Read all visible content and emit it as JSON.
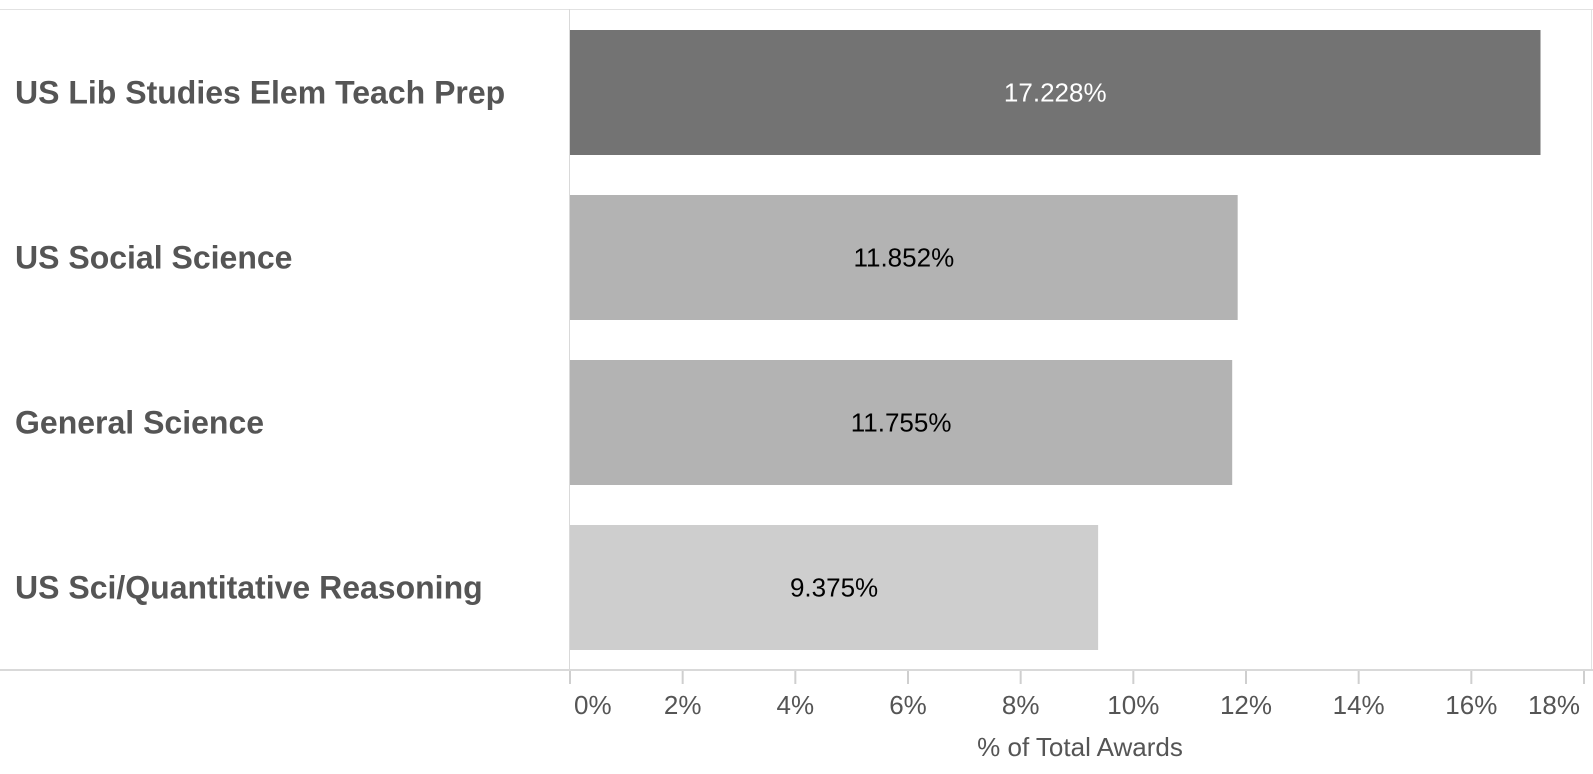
{
  "chart_data": {
    "type": "bar",
    "orientation": "horizontal",
    "title": "",
    "xlabel": "% of Total Awards",
    "ylabel": "",
    "categories": [
      "US Lib Studies Elem Teach Prep",
      "US Social Science",
      "General Science",
      "US Sci/Quantitative Reasoning"
    ],
    "values": [
      17.228,
      11.852,
      11.755,
      9.375
    ],
    "value_labels": [
      "17.228%",
      "11.852%",
      "11.755%",
      "9.375%"
    ],
    "bar_colors": [
      "#737373",
      "#b3b3b3",
      "#b3b3b3",
      "#cecece"
    ],
    "value_label_colors": [
      "#ffffff",
      "#000000",
      "#000000",
      "#000000"
    ],
    "xlim": [
      0,
      18
    ],
    "xticks": [
      0,
      2,
      4,
      6,
      8,
      10,
      12,
      14,
      16,
      18
    ],
    "xtick_labels": [
      "0%",
      "2%",
      "4%",
      "6%",
      "8%",
      "10%",
      "12%",
      "14%",
      "16%",
      "18%"
    ],
    "grid": false,
    "legend": "none"
  }
}
